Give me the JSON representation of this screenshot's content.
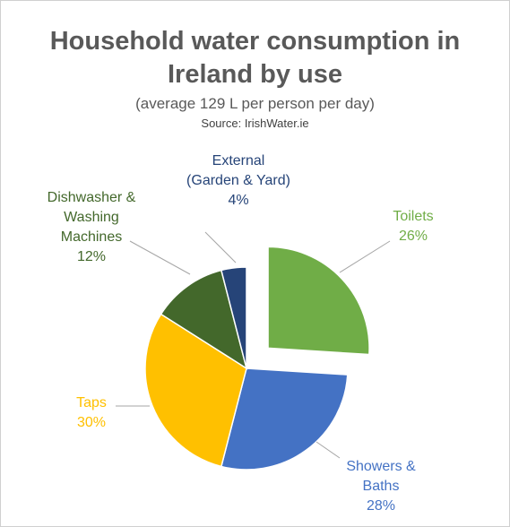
{
  "chart_data": {
    "type": "pie",
    "title_line1": "Household water consumption in",
    "title_line2": "Ireland by use",
    "subtitle": "(average 129 L per person per day)",
    "source": "Source: IrishWater.ie",
    "slices": [
      {
        "label_lines": [
          "Toilets"
        ],
        "pct_label": "26%",
        "value": 26,
        "color": "#70AD47",
        "exploded": true
      },
      {
        "label_lines": [
          "Showers &",
          "Baths"
        ],
        "pct_label": "28%",
        "value": 28,
        "color": "#4472C4",
        "exploded": false
      },
      {
        "label_lines": [
          "Taps"
        ],
        "pct_label": "30%",
        "value": 30,
        "color": "#FFC000",
        "exploded": false
      },
      {
        "label_lines": [
          "Dishwasher &",
          "Washing",
          "Machines"
        ],
        "pct_label": "12%",
        "value": 12,
        "color": "#43682B",
        "exploded": false
      },
      {
        "label_lines": [
          "External",
          "(Garden & Yard)"
        ],
        "pct_label": "4%",
        "value": 4,
        "color": "#264478",
        "exploded": false
      }
    ]
  }
}
